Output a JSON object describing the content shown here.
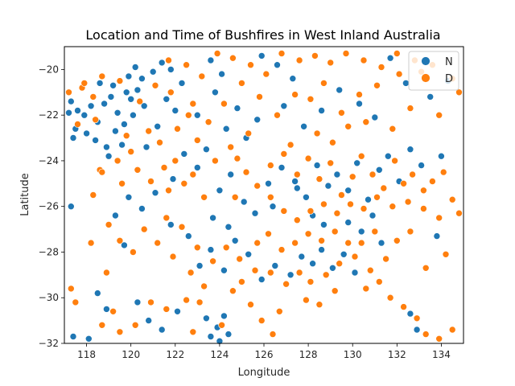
{
  "chart_data": {
    "type": "scatter",
    "title": "Location and Time of Bushfires in West Inland Australia",
    "xlabel": "Longitude",
    "ylabel": "Latitude",
    "xlim": [
      117,
      135
    ],
    "ylim": [
      -32,
      -19
    ],
    "xticks": [
      118,
      120,
      122,
      124,
      126,
      128,
      130,
      132,
      134
    ],
    "yticks": [
      -20,
      -22,
      -24,
      -26,
      -28,
      -30,
      -32
    ],
    "grid": false,
    "legend_position": "top-right",
    "series": [
      {
        "name": "N",
        "color": "#1f77b4",
        "points": [
          [
            117.3,
            -21.4
          ],
          [
            117.6,
            -21.8
          ],
          [
            117.9,
            -22.0
          ],
          [
            118.2,
            -21.6
          ],
          [
            118.5,
            -22.3
          ],
          [
            118.8,
            -21.5
          ],
          [
            119.1,
            -21.2
          ],
          [
            119.4,
            -21.9
          ],
          [
            119.7,
            -22.4
          ],
          [
            120.0,
            -21.3
          ],
          [
            120.3,
            -20.9
          ],
          [
            120.6,
            -21.6
          ],
          [
            118.0,
            -22.8
          ],
          [
            118.4,
            -23.1
          ],
          [
            118.9,
            -23.4
          ],
          [
            119.3,
            -22.7
          ],
          [
            117.5,
            -22.6
          ],
          [
            117.2,
            -21.9
          ],
          [
            119.8,
            -21.0
          ],
          [
            120.1,
            -22.0
          ],
          [
            120.5,
            -20.4
          ],
          [
            121.0,
            -20.1
          ],
          [
            121.4,
            -19.7
          ],
          [
            121.8,
            -20.0
          ],
          [
            120.2,
            -19.9
          ],
          [
            119.9,
            -20.3
          ],
          [
            118.6,
            -20.6
          ],
          [
            119.2,
            -20.7
          ],
          [
            117.4,
            -23.0
          ],
          [
            117.3,
            -26.0
          ],
          [
            119.0,
            -23.8
          ],
          [
            119.6,
            -23.3
          ],
          [
            121.2,
            -22.5
          ],
          [
            121.6,
            -21.3
          ],
          [
            122.3,
            -20.6
          ],
          [
            122.0,
            -21.8
          ],
          [
            123.0,
            -22.0
          ],
          [
            123.4,
            -23.5
          ],
          [
            123.8,
            -21.0
          ],
          [
            124.3,
            -22.6
          ],
          [
            124.8,
            -21.7
          ],
          [
            125.2,
            -23.0
          ],
          [
            125.7,
            -22.2
          ],
          [
            124.1,
            -20.2
          ],
          [
            123.6,
            -19.6
          ],
          [
            125.9,
            -19.4
          ],
          [
            126.6,
            -19.8
          ],
          [
            127.3,
            -20.4
          ],
          [
            124.5,
            -24.6
          ],
          [
            124.0,
            -25.3
          ],
          [
            123.7,
            -26.5
          ],
          [
            124.4,
            -26.9
          ],
          [
            125.1,
            -25.8
          ],
          [
            125.6,
            -26.3
          ],
          [
            126.2,
            -25.0
          ],
          [
            126.8,
            -24.3
          ],
          [
            127.4,
            -24.9
          ],
          [
            127.9,
            -25.6
          ],
          [
            128.4,
            -24.2
          ],
          [
            128.9,
            -25.1
          ],
          [
            129.3,
            -24.6
          ],
          [
            129.8,
            -25.3
          ],
          [
            130.2,
            -24.1
          ],
          [
            130.7,
            -25.7
          ],
          [
            131.2,
            -24.4
          ],
          [
            131.6,
            -23.8
          ],
          [
            132.1,
            -24.9
          ],
          [
            132.6,
            -23.5
          ],
          [
            133.1,
            -24.2
          ],
          [
            134.0,
            -23.8
          ],
          [
            133.8,
            -27.3
          ],
          [
            129.8,
            -26.7
          ],
          [
            130.4,
            -27.1
          ],
          [
            130.9,
            -26.4
          ],
          [
            131.3,
            -27.6
          ],
          [
            128.6,
            -27.9
          ],
          [
            128.2,
            -28.5
          ],
          [
            127.7,
            -28.2
          ],
          [
            129.1,
            -28.7
          ],
          [
            129.6,
            -28.1
          ],
          [
            130.1,
            -28.9
          ],
          [
            127.2,
            -29.0
          ],
          [
            126.5,
            -28.6
          ],
          [
            125.9,
            -29.2
          ],
          [
            125.3,
            -28.1
          ],
          [
            124.7,
            -27.5
          ],
          [
            124.2,
            -28.8
          ],
          [
            123.6,
            -27.9
          ],
          [
            123.1,
            -28.6
          ],
          [
            122.6,
            -27.3
          ],
          [
            121.8,
            -26.8
          ],
          [
            121.1,
            -25.4
          ],
          [
            120.5,
            -26.1
          ],
          [
            119.9,
            -25.6
          ],
          [
            119.3,
            -26.4
          ],
          [
            119.7,
            -27.7
          ],
          [
            118.5,
            -29.8
          ],
          [
            118.9,
            -30.5
          ],
          [
            120.3,
            -30.2
          ],
          [
            120.8,
            -31.0
          ],
          [
            121.4,
            -31.4
          ],
          [
            122.1,
            -30.6
          ],
          [
            123.4,
            -30.9
          ],
          [
            123.9,
            -31.3
          ],
          [
            124.0,
            -31.9
          ],
          [
            124.4,
            -31.6
          ],
          [
            123.6,
            -31.7
          ],
          [
            124.2,
            -30.8
          ],
          [
            118.1,
            -31.8
          ],
          [
            117.4,
            -31.7
          ],
          [
            132.9,
            -31.4
          ],
          [
            132.6,
            -30.7
          ],
          [
            128.2,
            -26.4
          ],
          [
            128.7,
            -26.8
          ],
          [
            127.5,
            -25.2
          ],
          [
            126.4,
            -26.0
          ],
          [
            123.0,
            -24.3
          ],
          [
            122.4,
            -23.7
          ],
          [
            121.9,
            -24.8
          ],
          [
            120.7,
            -23.4
          ],
          [
            131.0,
            -22.1
          ],
          [
            130.3,
            -21.5
          ],
          [
            129.4,
            -20.9
          ],
          [
            128.6,
            -21.8
          ],
          [
            127.8,
            -22.5
          ],
          [
            126.9,
            -21.6
          ],
          [
            133.5,
            -21.2
          ],
          [
            132.4,
            -20.6
          ],
          [
            131.7,
            -19.5
          ],
          [
            134.3,
            -20.5
          ]
        ]
      },
      {
        "name": "D",
        "color": "#ff7f0e",
        "points": [
          [
            117.2,
            -21.0
          ],
          [
            117.8,
            -20.8
          ],
          [
            118.3,
            -21.2
          ],
          [
            118.7,
            -20.3
          ],
          [
            119.5,
            -20.5
          ],
          [
            120.4,
            -21.4
          ],
          [
            121.1,
            -20.7
          ],
          [
            121.7,
            -19.6
          ],
          [
            122.5,
            -19.8
          ],
          [
            123.2,
            -20.3
          ],
          [
            123.9,
            -19.3
          ],
          [
            124.6,
            -19.5
          ],
          [
            125.4,
            -19.8
          ],
          [
            126.1,
            -20.2
          ],
          [
            126.8,
            -19.3
          ],
          [
            127.6,
            -19.6
          ],
          [
            128.3,
            -19.4
          ],
          [
            129.0,
            -19.7
          ],
          [
            129.7,
            -19.3
          ],
          [
            130.5,
            -19.6
          ],
          [
            131.3,
            -19.9
          ],
          [
            132.0,
            -19.3
          ],
          [
            132.8,
            -19.6
          ],
          [
            133.6,
            -19.8
          ],
          [
            134.5,
            -20.4
          ],
          [
            134.8,
            -21.0
          ],
          [
            133.9,
            -22.0
          ],
          [
            132.6,
            -21.7
          ],
          [
            131.8,
            -22.6
          ],
          [
            130.6,
            -22.3
          ],
          [
            129.5,
            -21.9
          ],
          [
            128.7,
            -20.6
          ],
          [
            128.1,
            -21.3
          ],
          [
            127.4,
            -21.1
          ],
          [
            126.6,
            -22.0
          ],
          [
            125.8,
            -21.2
          ],
          [
            125.0,
            -20.6
          ],
          [
            124.2,
            -21.5
          ],
          [
            123.5,
            -22.3
          ],
          [
            122.8,
            -21.5
          ],
          [
            122.1,
            -22.6
          ],
          [
            121.3,
            -23.2
          ],
          [
            120.8,
            -22.7
          ],
          [
            120.0,
            -23.6
          ],
          [
            119.4,
            -24.0
          ],
          [
            118.6,
            -24.4
          ],
          [
            121.5,
            -24.3
          ],
          [
            122.0,
            -24.0
          ],
          [
            122.4,
            -25.0
          ],
          [
            121.7,
            -25.3
          ],
          [
            122.8,
            -24.6
          ],
          [
            123.3,
            -25.6
          ],
          [
            120.9,
            -24.9
          ],
          [
            120.3,
            -24.4
          ],
          [
            119.6,
            -25.0
          ],
          [
            118.7,
            -24.5
          ],
          [
            118.3,
            -25.5
          ],
          [
            119.0,
            -26.8
          ],
          [
            119.5,
            -27.5
          ],
          [
            120.1,
            -28.0
          ],
          [
            118.9,
            -28.9
          ],
          [
            118.2,
            -27.6
          ],
          [
            120.6,
            -27.0
          ],
          [
            121.2,
            -27.6
          ],
          [
            121.9,
            -28.2
          ],
          [
            122.7,
            -28.9
          ],
          [
            123.3,
            -29.5
          ],
          [
            122.5,
            -30.1
          ],
          [
            121.6,
            -30.5
          ],
          [
            120.9,
            -30.2
          ],
          [
            120.2,
            -31.2
          ],
          [
            119.5,
            -31.5
          ],
          [
            118.7,
            -31.2
          ],
          [
            117.5,
            -30.2
          ],
          [
            117.3,
            -29.6
          ],
          [
            119.2,
            -30.6
          ],
          [
            122.8,
            -31.5
          ],
          [
            123.1,
            -30.2
          ],
          [
            124.6,
            -29.7
          ],
          [
            125.4,
            -30.3
          ],
          [
            124.9,
            -28.3
          ],
          [
            125.7,
            -27.6
          ],
          [
            126.3,
            -28.9
          ],
          [
            127.0,
            -29.4
          ],
          [
            127.6,
            -28.9
          ],
          [
            128.1,
            -29.3
          ],
          [
            128.8,
            -29.0
          ],
          [
            129.4,
            -28.5
          ],
          [
            130.1,
            -28.2
          ],
          [
            130.8,
            -28.8
          ],
          [
            131.5,
            -28.3
          ],
          [
            132.0,
            -27.5
          ],
          [
            132.6,
            -27.1
          ],
          [
            131.2,
            -29.3
          ],
          [
            131.7,
            -30.0
          ],
          [
            132.3,
            -30.4
          ],
          [
            132.9,
            -30.9
          ],
          [
            133.3,
            -31.6
          ],
          [
            133.9,
            -31.8
          ],
          [
            134.5,
            -31.4
          ],
          [
            126.3,
            -24.2
          ],
          [
            126.9,
            -23.7
          ],
          [
            127.5,
            -24.6
          ],
          [
            128.0,
            -23.9
          ],
          [
            128.5,
            -24.8
          ],
          [
            129.0,
            -24.1
          ],
          [
            129.5,
            -25.5
          ],
          [
            130.0,
            -24.7
          ],
          [
            130.4,
            -23.8
          ],
          [
            130.9,
            -24.6
          ],
          [
            131.4,
            -25.2
          ],
          [
            131.9,
            -24.0
          ],
          [
            132.3,
            -25.0
          ],
          [
            132.7,
            -24.6
          ],
          [
            133.2,
            -25.3
          ],
          [
            133.6,
            -24.9
          ],
          [
            134.1,
            -24.5
          ],
          [
            134.5,
            -25.7
          ],
          [
            134.8,
            -26.3
          ],
          [
            133.9,
            -26.5
          ],
          [
            133.2,
            -26.1
          ],
          [
            132.5,
            -25.8
          ],
          [
            131.8,
            -26.0
          ],
          [
            131.1,
            -25.6
          ],
          [
            130.5,
            -26.1
          ],
          [
            129.9,
            -25.9
          ],
          [
            129.3,
            -26.3
          ],
          [
            128.7,
            -25.9
          ],
          [
            128.1,
            -26.2
          ],
          [
            127.5,
            -26.6
          ],
          [
            126.9,
            -26.2
          ],
          [
            126.3,
            -25.6
          ],
          [
            125.7,
            -25.1
          ],
          [
            125.2,
            -24.5
          ],
          [
            124.7,
            -25.6
          ],
          [
            127.2,
            -23.3
          ],
          [
            128.4,
            -22.8
          ],
          [
            129.1,
            -23.2
          ],
          [
            129.8,
            -22.5
          ],
          [
            130.3,
            -21.1
          ],
          [
            131.1,
            -20.7
          ],
          [
            132.1,
            -20.2
          ],
          [
            133.1,
            -20.1
          ],
          [
            128.0,
            -27.2
          ],
          [
            128.6,
            -27.5
          ],
          [
            129.2,
            -27.1
          ],
          [
            129.8,
            -27.6
          ],
          [
            130.4,
            -27.6
          ],
          [
            131.0,
            -27.1
          ],
          [
            127.4,
            -27.6
          ],
          [
            126.8,
            -27.9
          ],
          [
            126.2,
            -27.2
          ],
          [
            125.6,
            -28.8
          ],
          [
            125.0,
            -29.3
          ],
          [
            124.3,
            -27.8
          ],
          [
            123.7,
            -28.4
          ],
          [
            123.0,
            -27.8
          ],
          [
            122.3,
            -26.9
          ],
          [
            121.6,
            -26.5
          ],
          [
            124.5,
            -23.4
          ],
          [
            125.3,
            -22.8
          ],
          [
            124.8,
            -23.9
          ],
          [
            123.8,
            -24.0
          ],
          [
            123.0,
            -23.1
          ],
          [
            122.6,
            -22.0
          ],
          [
            121.8,
            -21.0
          ],
          [
            119.8,
            -22.9
          ],
          [
            118.4,
            -22.2
          ],
          [
            117.6,
            -22.4
          ],
          [
            117.9,
            -20.6
          ],
          [
            129.2,
            -29.7
          ],
          [
            128.5,
            -30.3
          ],
          [
            130.6,
            -29.6
          ],
          [
            127.9,
            -30.1
          ],
          [
            126.7,
            -30.6
          ],
          [
            125.9,
            -31.0
          ],
          [
            126.4,
            -31.6
          ],
          [
            124.1,
            -31.2
          ],
          [
            133.3,
            -28.7
          ],
          [
            134.2,
            -28.1
          ]
        ]
      }
    ]
  }
}
